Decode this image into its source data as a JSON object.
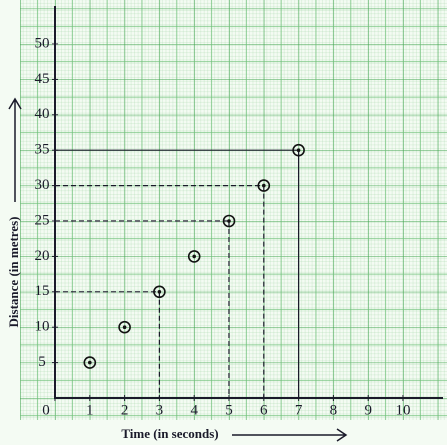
{
  "chart_data": {
    "type": "scatter",
    "x_label": "Time (in seconds)",
    "y_label": "Distance (in metres)",
    "x": [
      1,
      2,
      3,
      4,
      5,
      6,
      7
    ],
    "values": [
      5,
      10,
      15,
      20,
      25,
      30,
      35
    ],
    "color": "#111111",
    "xlim": [
      0,
      11
    ],
    "ylim": [
      0,
      55
    ],
    "xticks": [
      0,
      1,
      2,
      3,
      4,
      5,
      6,
      7,
      8,
      9,
      10
    ],
    "yticks": [
      5,
      10,
      15,
      20,
      25,
      30,
      35,
      40,
      45,
      50
    ],
    "grid": true,
    "guides": {
      "dashed": [
        3,
        5,
        6
      ],
      "solid": [
        7
      ]
    }
  }
}
